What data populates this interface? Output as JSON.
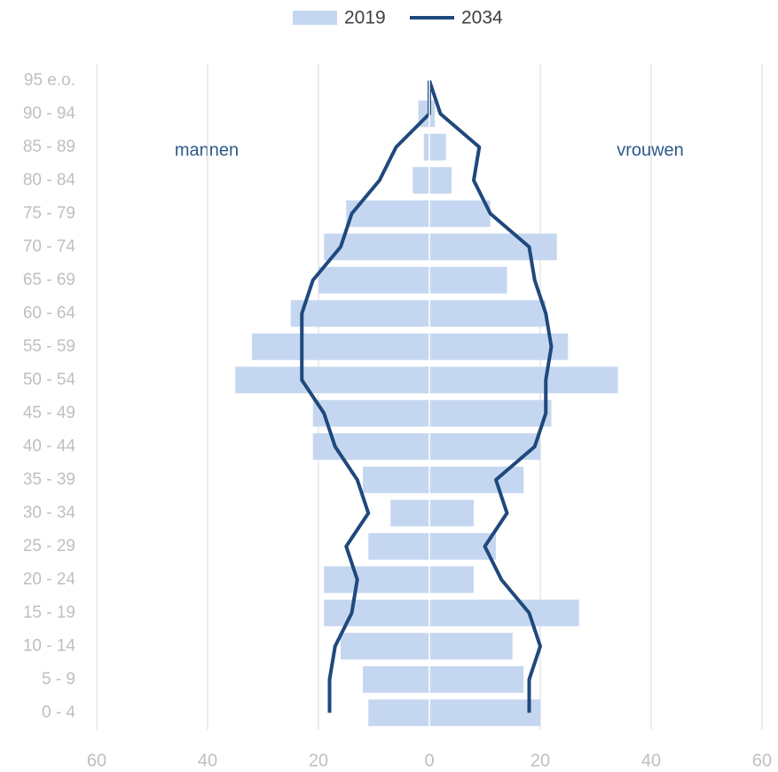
{
  "chart_data": {
    "type": "pyramid",
    "categories": [
      "0 - 4",
      "5 - 9",
      "10 - 14",
      "15 - 19",
      "20 - 24",
      "25 - 29",
      "30 - 34",
      "35 - 39",
      "40 - 44",
      "45 - 49",
      "50 - 54",
      "55 - 59",
      "60 - 64",
      "65 - 69",
      "70 - 74",
      "75 - 79",
      "80 - 84",
      "85 - 89",
      "90 - 94",
      "95 e.o."
    ],
    "series": [
      {
        "name": "2019",
        "type": "bar",
        "color": "#c5d7f0",
        "men": [
          -11,
          -12,
          -16,
          -19,
          -19,
          -11,
          -7,
          -12,
          -21,
          -21,
          -35,
          -32,
          -25,
          -20,
          -19,
          -15,
          -3,
          -1,
          -2,
          0
        ],
        "women": [
          20,
          17,
          15,
          27,
          8,
          12,
          8,
          17,
          20,
          22,
          34,
          25,
          21,
          14,
          23,
          11,
          4,
          3,
          1,
          0
        ]
      },
      {
        "name": "2034",
        "type": "line",
        "color": "#1f497d",
        "men": [
          -18,
          -18,
          -17,
          -14,
          -13,
          -15,
          -11,
          -13,
          -17,
          -19,
          -23,
          -23,
          -23,
          -21,
          -16,
          -14,
          -9,
          -6,
          0,
          0
        ],
        "women": [
          18,
          18,
          20,
          18,
          13,
          10,
          14,
          12,
          19,
          21,
          21,
          22,
          21,
          19,
          18,
          11,
          8,
          9,
          2,
          0
        ]
      }
    ],
    "annotations": [
      "mannen",
      "vrouwen"
    ],
    "xlim": [
      -60,
      60
    ],
    "xticks": [
      {
        "value": -60,
        "label": "60"
      },
      {
        "value": -40,
        "label": "40"
      },
      {
        "value": -20,
        "label": "20"
      },
      0,
      20,
      40,
      60
    ],
    "grid": true
  }
}
